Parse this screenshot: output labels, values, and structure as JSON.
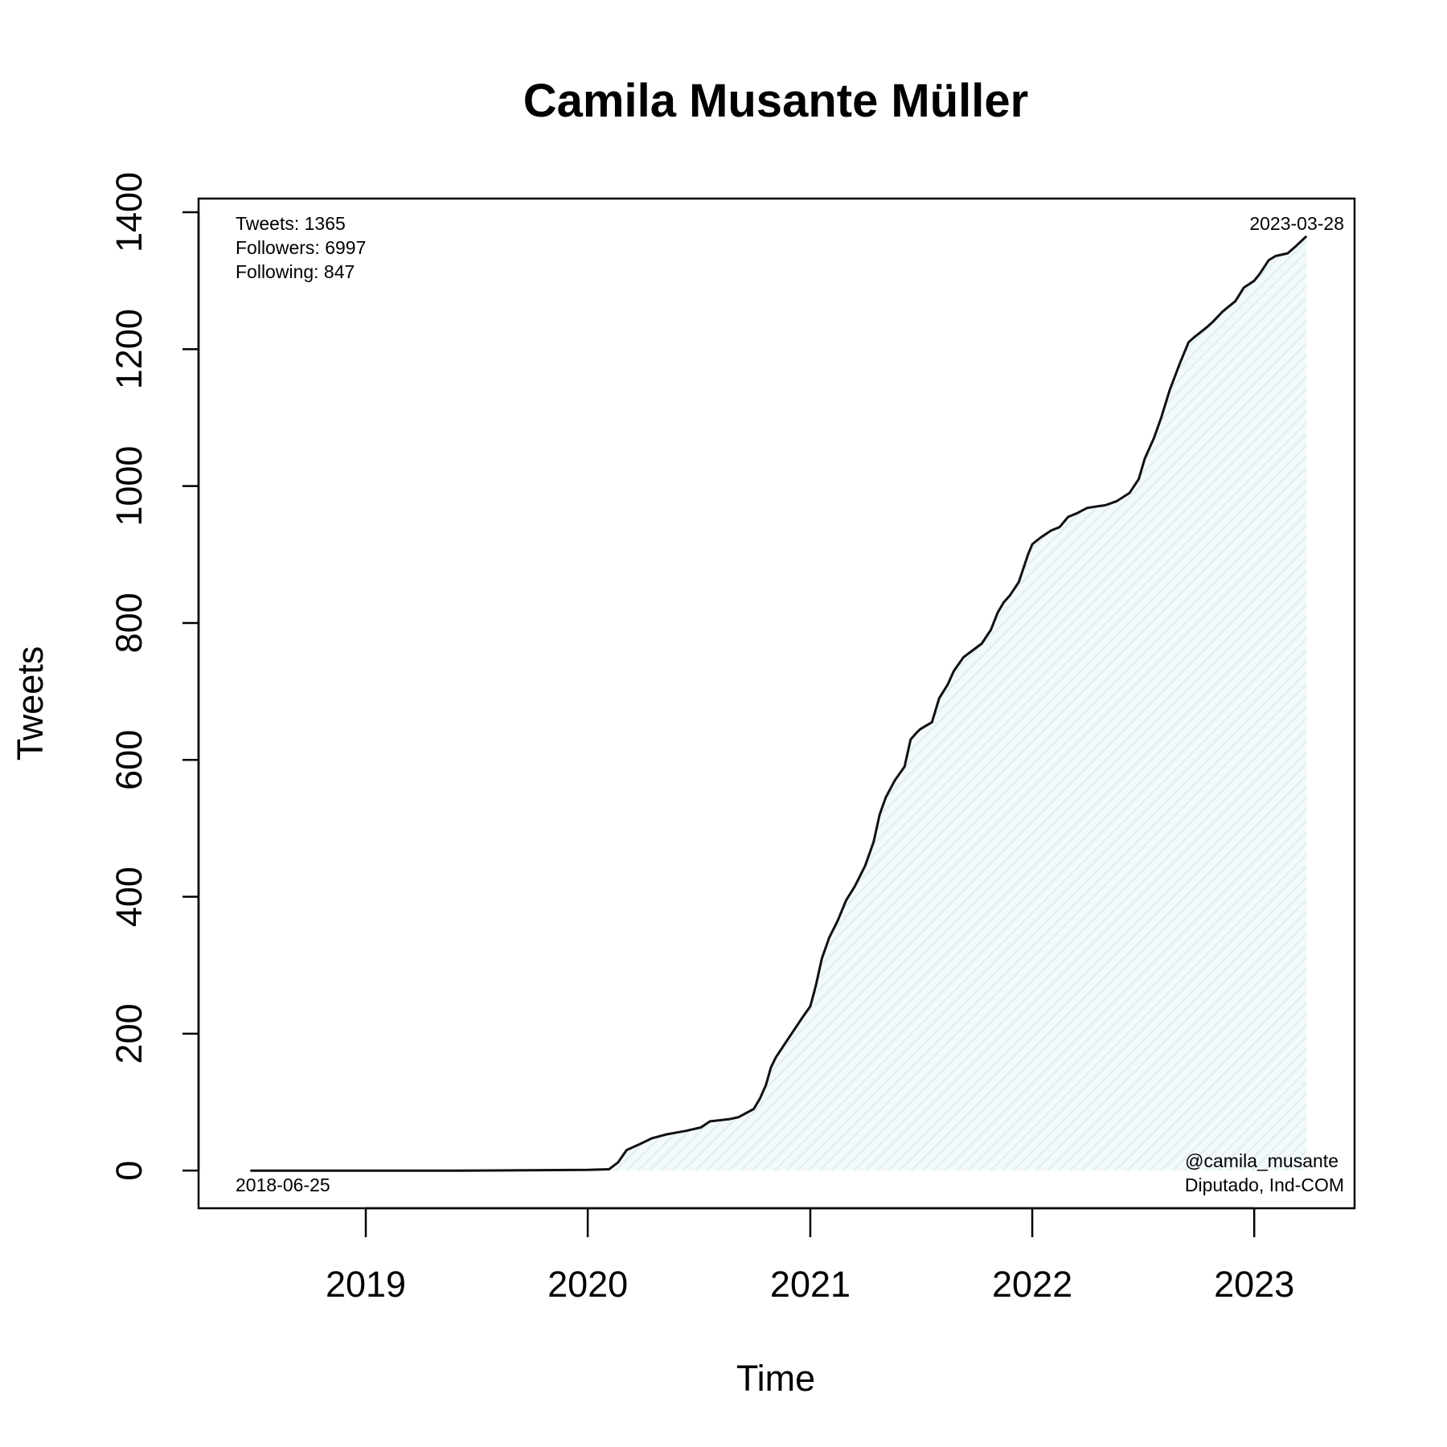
{
  "chart_data": {
    "type": "area",
    "title": "Camila Musante Müller",
    "xlabel": "Time",
    "ylabel": "Tweets",
    "xlim": [
      "2018-04-01",
      "2023-06-15"
    ],
    "ylim": [
      -55,
      1420
    ],
    "x_ticks": [
      "2019",
      "2020",
      "2021",
      "2022",
      "2023"
    ],
    "y_ticks": [
      0,
      200,
      400,
      600,
      800,
      1000,
      1200,
      1400
    ],
    "grid": false,
    "fill_color": "#dfeef3",
    "line_color": "#111111",
    "annotations": {
      "stats": [
        "Tweets: 1365",
        "Followers: 6997",
        "Following: 847"
      ],
      "start_date": "2018-06-25",
      "end_date": "2023-03-28",
      "handle": "@camila_musante",
      "role": "Diputado, Ind-COM"
    },
    "series": [
      {
        "x": [
          "2018-06-25",
          "2019-06-01",
          "2020-01-01",
          "2020-02-05",
          "2020-02-20",
          "2020-03-05",
          "2020-03-25",
          "2020-04-15",
          "2020-05-10",
          "2020-06-10",
          "2020-07-05",
          "2020-07-20",
          "2020-08-20",
          "2020-09-05",
          "2020-09-30",
          "2020-10-10",
          "2020-10-20",
          "2020-10-28",
          "2020-11-05",
          "2020-11-20",
          "2020-12-05",
          "2020-12-20",
          "2021-01-01",
          "2021-01-10",
          "2021-01-20",
          "2021-02-01",
          "2021-02-15",
          "2021-03-01",
          "2021-03-15",
          "2021-04-01",
          "2021-04-15",
          "2021-04-25",
          "2021-05-05",
          "2021-05-20",
          "2021-06-05",
          "2021-06-15",
          "2021-06-25",
          "2021-07-01",
          "2021-07-20",
          "2021-08-01",
          "2021-08-15",
          "2021-08-25",
          "2021-09-10",
          "2021-09-25",
          "2021-10-10",
          "2021-10-25",
          "2021-11-05",
          "2021-11-15",
          "2021-11-25",
          "2021-12-10",
          "2021-12-25",
          "2022-01-01",
          "2022-01-15",
          "2022-02-01",
          "2022-02-15",
          "2022-03-01",
          "2022-03-15",
          "2022-04-01",
          "2022-04-15",
          "2022-05-01",
          "2022-05-20",
          "2022-06-10",
          "2022-06-25",
          "2022-07-05",
          "2022-07-20",
          "2022-08-01",
          "2022-08-15",
          "2022-09-01",
          "2022-09-15",
          "2022-09-25",
          "2022-10-01",
          "2022-10-15",
          "2022-10-25",
          "2022-11-10",
          "2022-12-01",
          "2022-12-15",
          "2023-01-01",
          "2023-01-10",
          "2023-01-25",
          "2023-02-05",
          "2023-02-25",
          "2023-03-10",
          "2023-03-28"
        ],
        "values": [
          0,
          0,
          1,
          2,
          12,
          30,
          38,
          47,
          53,
          58,
          63,
          72,
          75,
          78,
          90,
          105,
          125,
          150,
          165,
          185,
          205,
          225,
          240,
          270,
          310,
          340,
          365,
          395,
          415,
          445,
          480,
          520,
          545,
          570,
          590,
          630,
          640,
          645,
          655,
          690,
          710,
          730,
          750,
          760,
          770,
          790,
          815,
          830,
          840,
          860,
          900,
          915,
          925,
          935,
          940,
          955,
          960,
          968,
          970,
          972,
          978,
          990,
          1010,
          1040,
          1070,
          1100,
          1140,
          1180,
          1210,
          1218,
          1222,
          1232,
          1240,
          1255,
          1270,
          1290,
          1300,
          1310,
          1330,
          1336,
          1340,
          1350,
          1365
        ]
      }
    ]
  }
}
